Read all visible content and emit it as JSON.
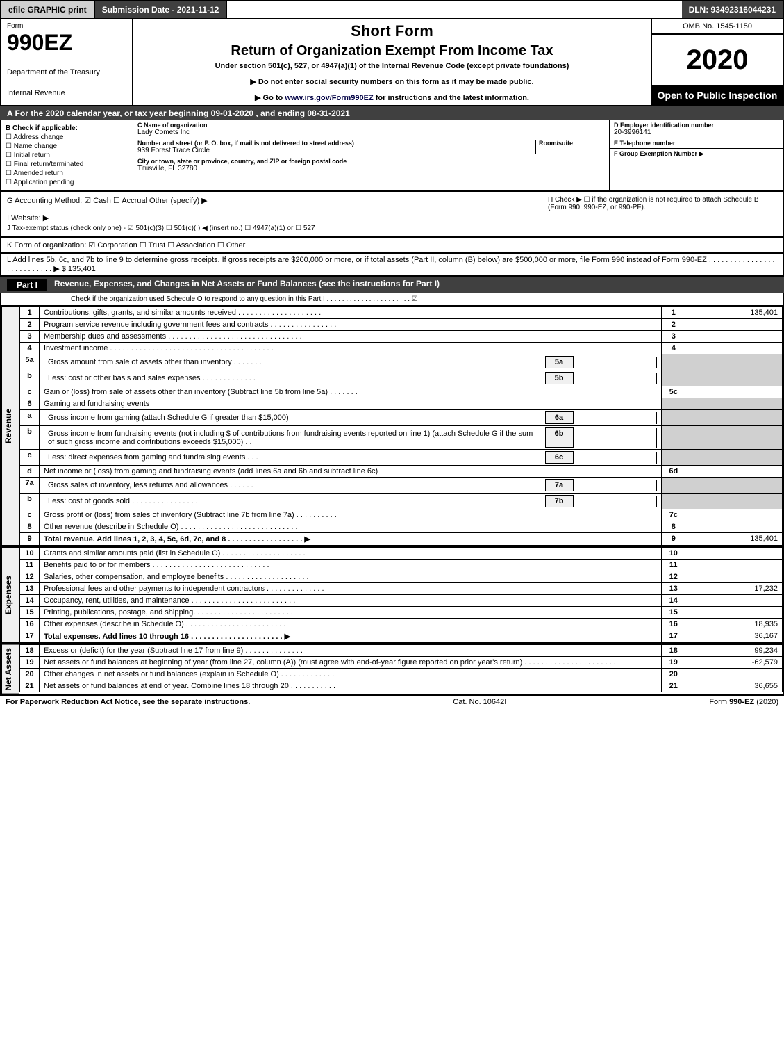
{
  "top": {
    "efile": "efile GRAPHIC print",
    "submission": "Submission Date - 2021-11-12",
    "dln": "DLN: 93492316044231"
  },
  "header": {
    "form_word": "Form",
    "form_num": "990EZ",
    "dept1": "Department of the Treasury",
    "dept2": "Internal Revenue",
    "short_form": "Short Form",
    "return_title": "Return of Organization Exempt From Income Tax",
    "subtitle": "Under section 501(c), 527, or 4947(a)(1) of the Internal Revenue Code (except private foundations)",
    "note1": "▶ Do not enter social security numbers on this form as it may be made public.",
    "note2_prefix": "▶ Go to ",
    "note2_link": "www.irs.gov/Form990EZ",
    "note2_suffix": " for instructions and the latest information.",
    "omb": "OMB No. 1545-1150",
    "year": "2020",
    "open": "Open to Public Inspection"
  },
  "period": "A For the 2020 calendar year, or tax year beginning 09-01-2020 , and ending 08-31-2021",
  "boxB": {
    "title": "B  Check if applicable:",
    "opts": [
      "Address change",
      "Name change",
      "Initial return",
      "Final return/terminated",
      "Amended return",
      "Application pending"
    ]
  },
  "boxC": {
    "name_lbl": "C Name of organization",
    "name": "Lady Comets Inc",
    "addr_lbl": "Number and street (or P. O. box, if mail is not delivered to street address)",
    "addr": "939 Forest Trace Circle",
    "room_lbl": "Room/suite",
    "city_lbl": "City or town, state or province, country, and ZIP or foreign postal code",
    "city": "Titusville, FL  32780"
  },
  "boxD": {
    "lbl": "D Employer identification number",
    "val": "20-3996141"
  },
  "boxE": {
    "lbl": "E Telephone number",
    "val": ""
  },
  "boxF": {
    "lbl": "F Group Exemption Number   ▶",
    "val": ""
  },
  "lineG": "G Accounting Method:   ☑ Cash  ☐ Accrual  Other (specify) ▶",
  "lineH": "H  Check ▶  ☐  if the organization is not required to attach Schedule B (Form 990, 990-EZ, or 990-PF).",
  "lineI": "I Website: ▶",
  "lineJ": "J Tax-exempt status (check only one) - ☑ 501(c)(3) ☐ 501(c)(  ) ◀ (insert no.) ☐ 4947(a)(1) or ☐ 527",
  "lineK": "K Form of organization:  ☑ Corporation  ☐ Trust  ☐ Association  ☐ Other",
  "lineL": "L Add lines 5b, 6c, and 7b to line 9 to determine gross receipts. If gross receipts are $200,000 or more, or if total assets (Part II, column (B) below) are $500,000 or more, file Form 990 instead of Form 990-EZ . . . . . . . . . . . . . . . . . . . . . . . . . . . ▶ $ 135,401",
  "part1": {
    "label": "Part I",
    "title": "Revenue, Expenses, and Changes in Net Assets or Fund Balances (see the instructions for Part I)",
    "check_note": "Check if the organization used Schedule O to respond to any question in this Part I . . . . . . . . . . . . . . . . . . . . . . ☑"
  },
  "sections": {
    "revenue": "Revenue",
    "expenses": "Expenses",
    "netassets": "Net Assets"
  },
  "lines": [
    {
      "n": "1",
      "txt": "Contributions, gifts, grants, and similar amounts received . . . . . . . . . . . . . . . . . . . .",
      "ref": "1",
      "amt": "135,401"
    },
    {
      "n": "2",
      "txt": "Program service revenue including government fees and contracts . . . . . . . . . . . . . . . .",
      "ref": "2",
      "amt": ""
    },
    {
      "n": "3",
      "txt": "Membership dues and assessments . . . . . . . . . . . . . . . . . . . . . . . . . . . . . . . .",
      "ref": "3",
      "amt": ""
    },
    {
      "n": "4",
      "txt": "Investment income . . . . . . . . . . . . . . . . . . . . . . . . . . . . . . . . . . . . . . .",
      "ref": "4",
      "amt": ""
    },
    {
      "n": "5a",
      "txt": "Gross amount from sale of assets other than inventory . . . . . . .",
      "sub": "5a",
      "subamt": "",
      "ref": "",
      "amt": "",
      "gray": true
    },
    {
      "n": "b",
      "txt": "Less: cost or other basis and sales expenses . . . . . . . . . . . . .",
      "sub": "5b",
      "subamt": "",
      "ref": "",
      "amt": "",
      "gray": true
    },
    {
      "n": "c",
      "txt": "Gain or (loss) from sale of assets other than inventory (Subtract line 5b from line 5a) . . . . . . .",
      "ref": "5c",
      "amt": ""
    },
    {
      "n": "6",
      "txt": "Gaming and fundraising events",
      "ref": "",
      "amt": "",
      "gray": true
    },
    {
      "n": "a",
      "txt": "Gross income from gaming (attach Schedule G if greater than $15,000)",
      "sub": "6a",
      "subamt": "",
      "ref": "",
      "amt": "",
      "gray": true
    },
    {
      "n": "b",
      "txt": "Gross income from fundraising events (not including $                   of contributions from fundraising events reported on line 1) (attach Schedule G if the sum of such gross income and contributions exceeds $15,000)   . .",
      "sub": "6b",
      "subamt": "",
      "ref": "",
      "amt": "",
      "gray": true
    },
    {
      "n": "c",
      "txt": "Less: direct expenses from gaming and fundraising events   . . .",
      "sub": "6c",
      "subamt": "",
      "ref": "",
      "amt": "",
      "gray": true
    },
    {
      "n": "d",
      "txt": "Net income or (loss) from gaming and fundraising events (add lines 6a and 6b and subtract line 6c)",
      "ref": "6d",
      "amt": ""
    },
    {
      "n": "7a",
      "txt": "Gross sales of inventory, less returns and allowances . . . . . .",
      "sub": "7a",
      "subamt": "",
      "ref": "",
      "amt": "",
      "gray": true
    },
    {
      "n": "b",
      "txt": "Less: cost of goods sold          . . . . . . . . . . . . . . . .",
      "sub": "7b",
      "subamt": "",
      "ref": "",
      "amt": "",
      "gray": true
    },
    {
      "n": "c",
      "txt": "Gross profit or (loss) from sales of inventory (Subtract line 7b from line 7a) . . . . . . . . . .",
      "ref": "7c",
      "amt": ""
    },
    {
      "n": "8",
      "txt": "Other revenue (describe in Schedule O) . . . . . . . . . . . . . . . . . . . . . . . . . . . .",
      "ref": "8",
      "amt": ""
    },
    {
      "n": "9",
      "txt": "Total revenue. Add lines 1, 2, 3, 4, 5c, 6d, 7c, and 8  . . . . . . . . . . . . . . . . . .  ▶",
      "ref": "9",
      "amt": "135,401",
      "bold": true
    }
  ],
  "exp_lines": [
    {
      "n": "10",
      "txt": "Grants and similar amounts paid (list in Schedule O) . . . . . . . . . . . . . . . . . . . .",
      "ref": "10",
      "amt": ""
    },
    {
      "n": "11",
      "txt": "Benefits paid to or for members     . . . . . . . . . . . . . . . . . . . . . . . . . . . .",
      "ref": "11",
      "amt": ""
    },
    {
      "n": "12",
      "txt": "Salaries, other compensation, and employee benefits . . . . . . . . . . . . . . . . . . . .",
      "ref": "12",
      "amt": ""
    },
    {
      "n": "13",
      "txt": "Professional fees and other payments to independent contractors . . . . . . . . . . . . . .",
      "ref": "13",
      "amt": "17,232"
    },
    {
      "n": "14",
      "txt": "Occupancy, rent, utilities, and maintenance . . . . . . . . . . . . . . . . . . . . . . . . .",
      "ref": "14",
      "amt": ""
    },
    {
      "n": "15",
      "txt": "Printing, publications, postage, and shipping. . . . . . . . . . . . . . . . . . . . . . . .",
      "ref": "15",
      "amt": ""
    },
    {
      "n": "16",
      "txt": "Other expenses (describe in Schedule O)     . . . . . . . . . . . . . . . . . . . . . . . .",
      "ref": "16",
      "amt": "18,935"
    },
    {
      "n": "17",
      "txt": "Total expenses. Add lines 10 through 16      . . . . . . . . . . . . . . . . . . . . . .  ▶",
      "ref": "17",
      "amt": "36,167",
      "bold": true
    }
  ],
  "na_lines": [
    {
      "n": "18",
      "txt": "Excess or (deficit) for the year (Subtract line 17 from line 9)      . . . . . . . . . . . . . .",
      "ref": "18",
      "amt": "99,234"
    },
    {
      "n": "19",
      "txt": "Net assets or fund balances at beginning of year (from line 27, column (A)) (must agree with end-of-year figure reported on prior year's return) . . . . . . . . . . . . . . . . . . . . . .",
      "ref": "19",
      "amt": "-62,579"
    },
    {
      "n": "20",
      "txt": "Other changes in net assets or fund balances (explain in Schedule O) . . . . . . . . . . . . .",
      "ref": "20",
      "amt": ""
    },
    {
      "n": "21",
      "txt": "Net assets or fund balances at end of year. Combine lines 18 through 20 . . . . . . . . . . .",
      "ref": "21",
      "amt": "36,655"
    }
  ],
  "footer": {
    "left": "For Paperwork Reduction Act Notice, see the separate instructions.",
    "center": "Cat. No. 10642I",
    "right": "Form 990-EZ (2020)"
  }
}
